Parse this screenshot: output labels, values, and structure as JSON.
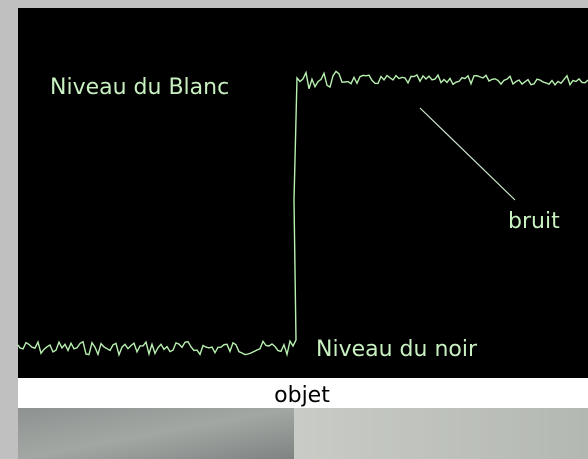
{
  "labels": {
    "white_level": "Niveau du Blanc",
    "noise": "bruit",
    "black_level": "Niveau du noir",
    "object": "objet"
  }
}
